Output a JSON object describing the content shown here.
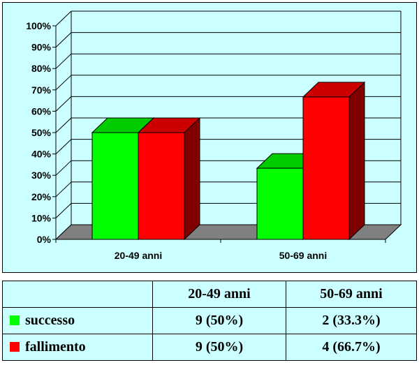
{
  "chart_data": {
    "type": "bar",
    "three_d": true,
    "categories": [
      "20-49 anni",
      "50-69 anni"
    ],
    "series": [
      {
        "name": "successo",
        "values": [
          50,
          33.3
        ],
        "color": "#00ff00",
        "side_color": "#008000",
        "top_color": "#00cc00"
      },
      {
        "name": "fallimento",
        "values": [
          50,
          66.7
        ],
        "color": "#ff0000",
        "side_color": "#800000",
        "top_color": "#cc0000"
      }
    ],
    "ylim": [
      0,
      100
    ],
    "yticks": [
      "0%",
      "10%",
      "20%",
      "30%",
      "40%",
      "50%",
      "60%",
      "70%",
      "80%",
      "90%",
      "100%"
    ],
    "grid": true,
    "background": "#ccffff",
    "floor_color": "#808080"
  },
  "table": {
    "headers": [
      "",
      "20-49 anni",
      "50-69 anni"
    ],
    "rows": [
      {
        "label": "successo",
        "cells": [
          "9 (50%)",
          "2 (33.3%)"
        ],
        "swatch": "#00ff00"
      },
      {
        "label": "fallimento",
        "cells": [
          "9 (50%)",
          "4 (66.7%)"
        ],
        "swatch": "#ff0000"
      }
    ]
  }
}
